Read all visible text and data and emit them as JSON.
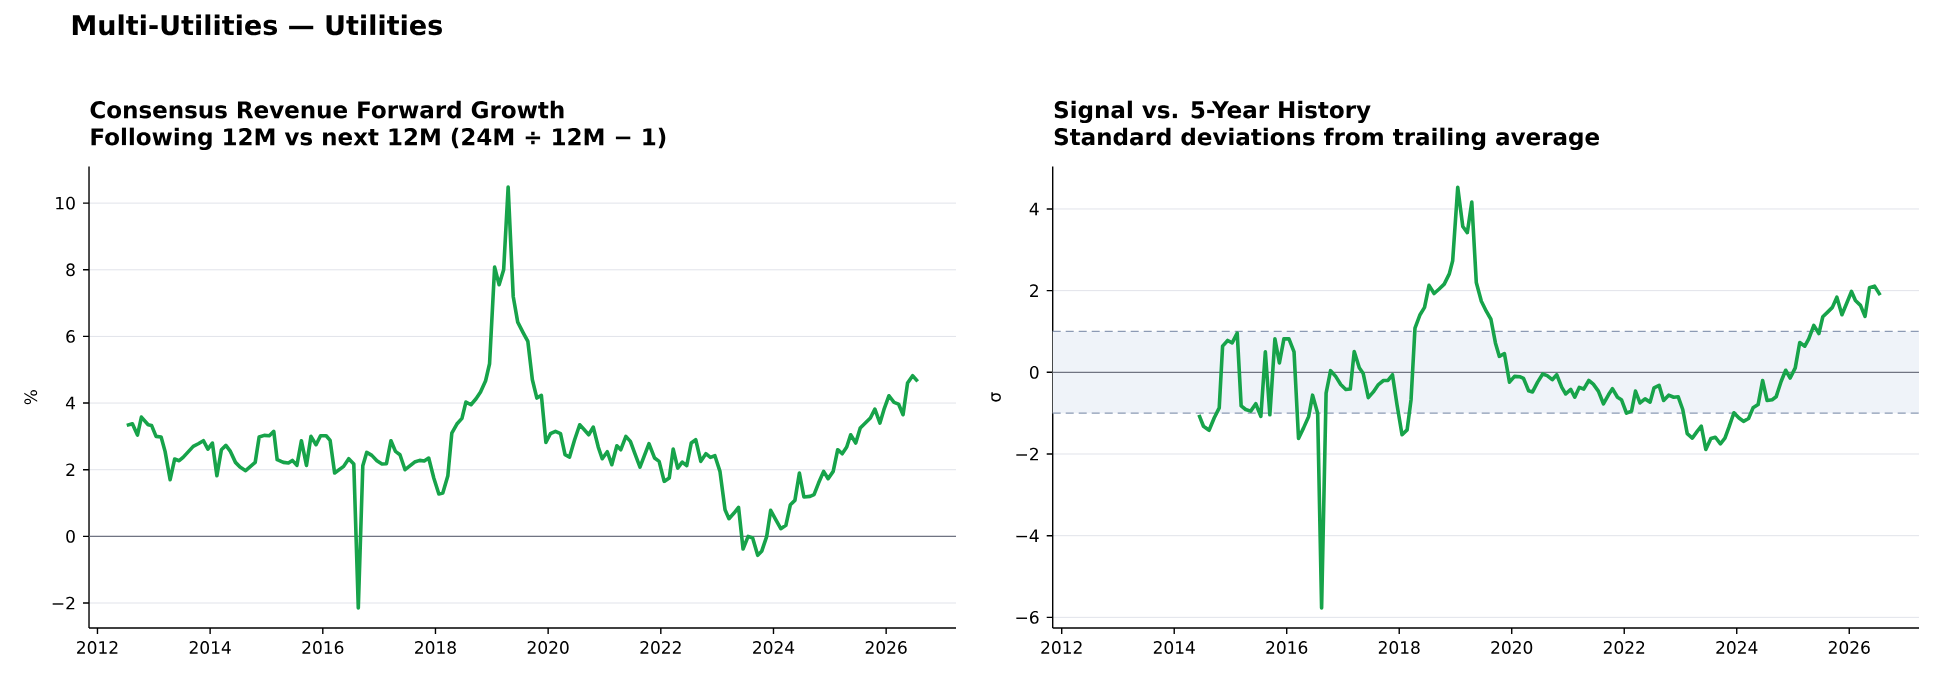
{
  "chart_data": [
    {
      "type": "line",
      "title": "Consensus Revenue Forward Growth",
      "subtitle": "Following 12M vs next 12M (24M ÷ 12M − 1)",
      "ylabel": "%",
      "annotations": [
        "Multi-Utilities — Utilities"
      ],
      "x": [
        2012.52,
        2012.62,
        2012.71,
        2012.78,
        2012.9,
        2012.96,
        2013.04,
        2013.13,
        2013.2,
        2013.29,
        2013.37,
        2013.45,
        2013.52,
        2013.7,
        2013.79,
        2013.88,
        2013.96,
        2014.04,
        2014.12,
        2014.2,
        2014.28,
        2014.36,
        2014.45,
        2014.53,
        2014.63,
        2014.8,
        2014.87,
        2014.96,
        2015.05,
        2015.13,
        2015.19,
        2015.3,
        2015.39,
        2015.46,
        2015.54,
        2015.62,
        2015.71,
        2015.79,
        2015.88,
        2015.96,
        2016.06,
        2016.13,
        2016.21,
        2016.37,
        2016.46,
        2016.55,
        2016.63,
        2016.71,
        2016.78,
        2016.87,
        2016.96,
        2017.05,
        2017.13,
        2017.21,
        2017.29,
        2017.37,
        2017.46,
        2017.63,
        2017.72,
        2017.8,
        2017.88,
        2017.97,
        2018.06,
        2018.13,
        2018.22,
        2018.29,
        2018.38,
        2018.47,
        2018.54,
        2018.63,
        2018.72,
        2018.8,
        2018.89,
        2018.96,
        2019.05,
        2019.13,
        2019.21,
        2019.29,
        2019.38,
        2019.46,
        2019.56,
        2019.64,
        2019.72,
        2019.8,
        2019.88,
        2019.96,
        2020.04,
        2020.13,
        2020.22,
        2020.3,
        2020.38,
        2020.47,
        2020.56,
        2020.63,
        2020.72,
        2020.8,
        2020.89,
        2020.96,
        2021.05,
        2021.13,
        2021.22,
        2021.29,
        2021.38,
        2021.46,
        2021.54,
        2021.63,
        2021.79,
        2021.89,
        2021.97,
        2022.06,
        2022.15,
        2022.22,
        2022.3,
        2022.38,
        2022.46,
        2022.54,
        2022.62,
        2022.71,
        2022.8,
        2022.88,
        2022.96,
        2023.05,
        2023.14,
        2023.21,
        2023.3,
        2023.38,
        2023.46,
        2023.55,
        2023.63,
        2023.72,
        2023.79,
        2023.88,
        2023.95,
        2024.04,
        2024.13,
        2024.22,
        2024.3,
        2024.38,
        2024.46,
        2024.54,
        2024.65,
        2024.72,
        2024.8,
        2024.89,
        2024.97,
        2025.06,
        2025.14,
        2025.22,
        2025.3,
        2025.37,
        2025.46,
        2025.54,
        2025.63,
        2025.72,
        2025.8,
        2025.89,
        2025.96,
        2026.05,
        2026.14,
        2026.22,
        2026.3,
        2026.38,
        2026.47,
        2026.56
      ],
      "series": [
        {
          "color": "#17a34a",
          "values": [
            3.33,
            3.38,
            3.04,
            3.58,
            3.35,
            3.33,
            3.0,
            2.98,
            2.55,
            1.7,
            2.32,
            2.27,
            2.37,
            2.7,
            2.78,
            2.87,
            2.62,
            2.8,
            1.82,
            2.6,
            2.73,
            2.55,
            2.22,
            2.08,
            1.97,
            2.22,
            2.98,
            3.03,
            3.02,
            3.15,
            2.3,
            2.22,
            2.2,
            2.28,
            2.13,
            2.87,
            2.13,
            3.0,
            2.75,
            3.02,
            3.02,
            2.88,
            1.9,
            2.1,
            2.33,
            2.17,
            -2.15,
            2.12,
            2.52,
            2.43,
            2.27,
            2.17,
            2.18,
            2.87,
            2.55,
            2.45,
            2.0,
            2.23,
            2.28,
            2.26,
            2.35,
            1.75,
            1.27,
            1.3,
            1.82,
            3.1,
            3.37,
            3.54,
            4.03,
            3.95,
            4.13,
            4.33,
            4.67,
            5.18,
            8.08,
            7.55,
            8.0,
            10.48,
            7.2,
            6.43,
            6.1,
            5.85,
            4.7,
            4.15,
            4.23,
            2.82,
            3.08,
            3.15,
            3.08,
            2.45,
            2.38,
            2.9,
            3.35,
            3.22,
            3.05,
            3.28,
            2.68,
            2.33,
            2.54,
            2.15,
            2.72,
            2.6,
            3.0,
            2.85,
            2.48,
            2.08,
            2.78,
            2.35,
            2.25,
            1.65,
            1.75,
            2.62,
            2.05,
            2.23,
            2.12,
            2.8,
            2.9,
            2.25,
            2.48,
            2.37,
            2.42,
            1.95,
            0.8,
            0.53,
            0.7,
            0.87,
            -0.38,
            0.0,
            -0.05,
            -0.57,
            -0.45,
            0.0,
            0.78,
            0.5,
            0.23,
            0.33,
            0.95,
            1.08,
            1.9,
            1.18,
            1.2,
            1.25,
            1.6,
            1.95,
            1.73,
            1.95,
            2.6,
            2.48,
            2.68,
            3.05,
            2.8,
            3.25,
            3.4,
            3.55,
            3.82,
            3.4,
            3.8,
            4.22,
            4.02,
            3.97,
            3.65,
            4.6,
            4.82,
            4.65
          ]
        }
      ],
      "xlim": [
        2011.85,
        2027.24
      ],
      "ylim": [
        -2.75,
        11.1
      ],
      "xticks": [
        2012,
        2014,
        2016,
        2018,
        2020,
        2022,
        2024,
        2026
      ],
      "yticks": [
        {
          "value": -2,
          "label": "−2"
        },
        0,
        2,
        4,
        6,
        8,
        10
      ],
      "grid": "y",
      "ref_lines": [
        {
          "axis": "y",
          "value": 0,
          "color": "#707482",
          "line_style": "solid"
        }
      ]
    },
    {
      "type": "line",
      "title": "Signal vs. 5-Year History",
      "subtitle": "Standard deviations from trailing average",
      "ylabel": "σ",
      "x": [
        2014.44,
        2014.52,
        2014.62,
        2014.71,
        2014.8,
        2014.86,
        2014.95,
        2015.03,
        2015.12,
        2015.19,
        2015.27,
        2015.36,
        2015.45,
        2015.54,
        2015.62,
        2015.7,
        2015.79,
        2015.87,
        2015.95,
        2016.04,
        2016.13,
        2016.21,
        2016.3,
        2016.39,
        2016.46,
        2016.55,
        2016.62,
        2016.7,
        2016.78,
        2016.87,
        2016.96,
        2017.05,
        2017.13,
        2017.2,
        2017.29,
        2017.36,
        2017.45,
        2017.54,
        2017.63,
        2017.72,
        2017.8,
        2017.88,
        2017.96,
        2018.05,
        2018.14,
        2018.21,
        2018.28,
        2018.37,
        2018.45,
        2018.53,
        2018.62,
        2018.71,
        2018.8,
        2018.89,
        2018.95,
        2019.04,
        2019.13,
        2019.21,
        2019.29,
        2019.37,
        2019.46,
        2019.55,
        2019.63,
        2019.71,
        2019.78,
        2019.87,
        2019.96,
        2020.05,
        2020.15,
        2020.21,
        2020.3,
        2020.37,
        2020.46,
        2020.55,
        2020.63,
        2020.72,
        2020.8,
        2020.89,
        2020.96,
        2021.05,
        2021.12,
        2021.2,
        2021.28,
        2021.37,
        2021.45,
        2021.54,
        2021.63,
        2021.72,
        2021.79,
        2021.88,
        2021.95,
        2022.04,
        2022.13,
        2022.2,
        2022.28,
        2022.37,
        2022.46,
        2022.53,
        2022.62,
        2022.7,
        2022.79,
        2022.88,
        2022.96,
        2023.04,
        2023.12,
        2023.21,
        2023.3,
        2023.37,
        2023.45,
        2023.54,
        2023.62,
        2023.71,
        2023.79,
        2023.86,
        2023.95,
        2024.04,
        2024.12,
        2024.21,
        2024.29,
        2024.38,
        2024.46,
        2024.54,
        2024.63,
        2024.7,
        2024.79,
        2024.87,
        2024.95,
        2025.04,
        2025.12,
        2025.21,
        2025.28,
        2025.37,
        2025.46,
        2025.53,
        2025.62,
        2025.7,
        2025.78,
        2025.87,
        2025.96,
        2026.04,
        2026.11,
        2026.2,
        2026.28,
        2026.36,
        2026.45,
        2026.55
      ],
      "series": [
        {
          "color": "#17a34a",
          "values": [
            -1.04,
            -1.32,
            -1.42,
            -1.12,
            -0.87,
            0.64,
            0.78,
            0.72,
            0.96,
            -0.82,
            -0.91,
            -0.95,
            -0.77,
            -1.08,
            0.5,
            -1.04,
            0.82,
            0.23,
            0.82,
            0.82,
            0.5,
            -1.62,
            -1.36,
            -1.08,
            -0.56,
            -1.0,
            -5.77,
            -0.51,
            0.04,
            -0.1,
            -0.3,
            -0.42,
            -0.41,
            0.51,
            0.11,
            -0.03,
            -0.62,
            -0.48,
            -0.3,
            -0.2,
            -0.2,
            -0.06,
            -0.79,
            -1.53,
            -1.41,
            -0.67,
            1.08,
            1.41,
            1.59,
            2.13,
            1.93,
            2.04,
            2.16,
            2.41,
            2.73,
            4.53,
            3.57,
            3.42,
            4.17,
            2.2,
            1.74,
            1.49,
            1.3,
            0.72,
            0.39,
            0.46,
            -0.24,
            -0.1,
            -0.11,
            -0.15,
            -0.45,
            -0.48,
            -0.24,
            -0.04,
            -0.08,
            -0.18,
            -0.06,
            -0.37,
            -0.53,
            -0.42,
            -0.61,
            -0.37,
            -0.41,
            -0.2,
            -0.29,
            -0.46,
            -0.77,
            -0.55,
            -0.4,
            -0.61,
            -0.67,
            -1.0,
            -0.95,
            -0.46,
            -0.75,
            -0.65,
            -0.73,
            -0.38,
            -0.32,
            -0.69,
            -0.56,
            -0.61,
            -0.6,
            -0.91,
            -1.5,
            -1.61,
            -1.44,
            -1.32,
            -1.89,
            -1.62,
            -1.59,
            -1.75,
            -1.61,
            -1.35,
            -0.99,
            -1.12,
            -1.2,
            -1.13,
            -0.87,
            -0.79,
            -0.2,
            -0.69,
            -0.67,
            -0.6,
            -0.22,
            0.05,
            -0.14,
            0.11,
            0.73,
            0.64,
            0.82,
            1.15,
            0.95,
            1.36,
            1.48,
            1.59,
            1.84,
            1.41,
            1.71,
            1.98,
            1.76,
            1.64,
            1.37,
            2.07,
            2.11,
            1.89
          ]
        }
      ],
      "xlim": [
        2011.84,
        2027.24
      ],
      "ylim": [
        -6.26,
        5.04
      ],
      "xticks": [
        2012,
        2014,
        2016,
        2018,
        2020,
        2022,
        2024,
        2026
      ],
      "yticks": [
        {
          "value": -6,
          "label": "−6"
        },
        {
          "value": -4,
          "label": "−4"
        },
        {
          "value": -2,
          "label": "−2"
        },
        0,
        2,
        4
      ],
      "grid": "y",
      "bands": [
        {
          "axis": "y",
          "from": -1,
          "to": 1,
          "color": "#eff3f9"
        }
      ],
      "ref_lines": [
        {
          "axis": "y",
          "value": 0,
          "color": "#707482",
          "line_style": "solid"
        },
        {
          "axis": "y",
          "value": 1,
          "color": "#8c9ab4",
          "line_style": "dashed"
        },
        {
          "axis": "y",
          "value": -1,
          "color": "#8c9ab4",
          "line_style": "dashed"
        }
      ]
    }
  ]
}
